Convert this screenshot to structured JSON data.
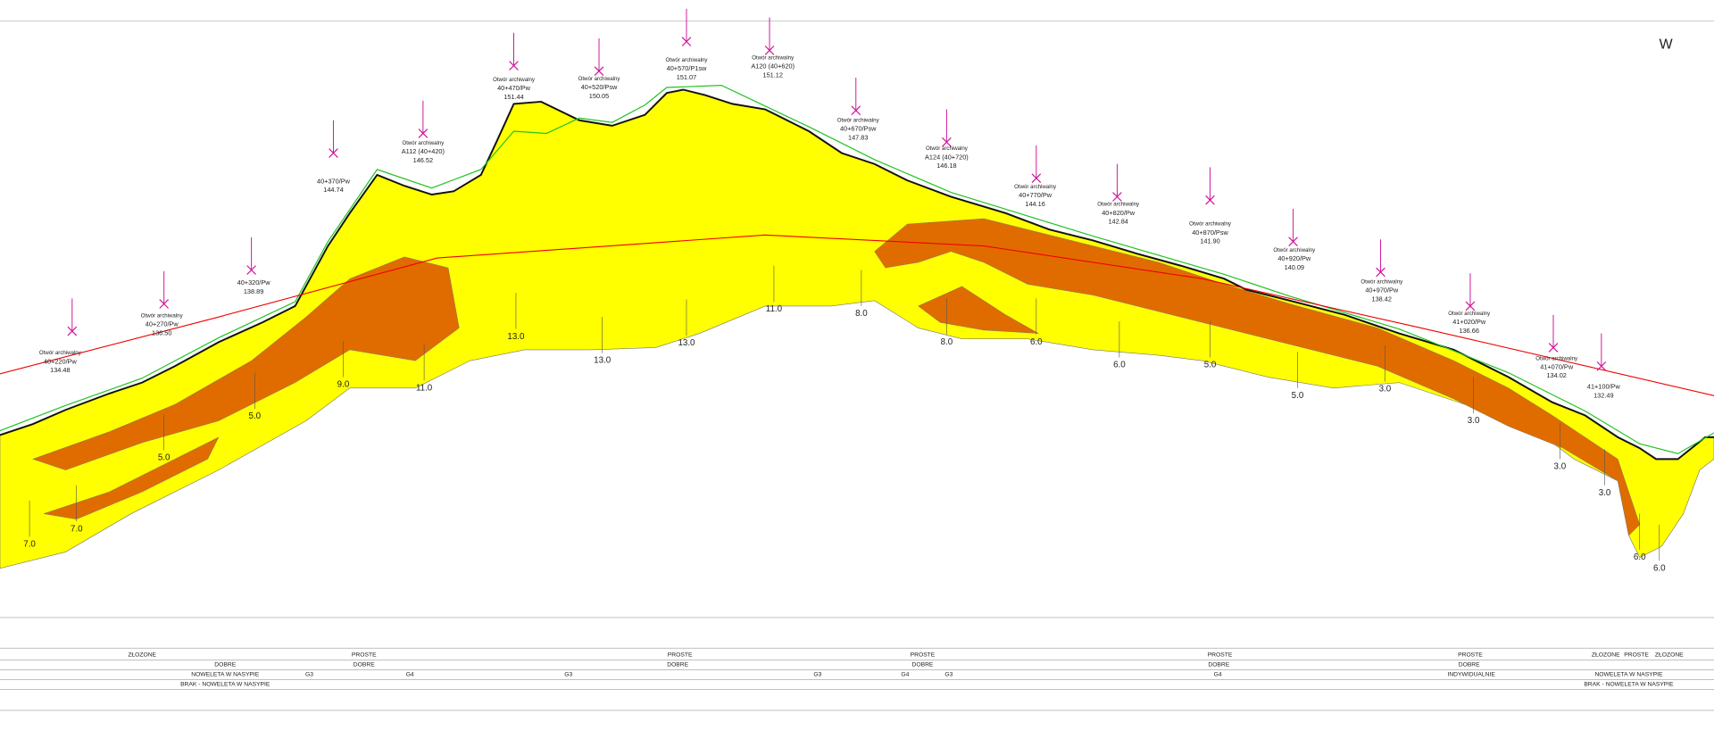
{
  "header": {
    "direction": "W"
  },
  "boreholes": [
    {
      "type": "Otwór archiwalny",
      "chainage": "40+220/Pw",
      "elevation": "134.48"
    },
    {
      "type": "Otwór archiwalny",
      "chainage": "40+270/Pw",
      "elevation": "136.50"
    },
    {
      "chainage": "40+320/Pw",
      "elevation": "138.89"
    },
    {
      "chainage": "40+370/Pw",
      "elevation": "144.74"
    },
    {
      "type": "Otwór archiwalny",
      "chainage": "A112 (40+420)",
      "elevation": "146.52"
    },
    {
      "type": "Otwór archiwalny",
      "chainage": "40+470/Pw",
      "elevation": "151.44"
    },
    {
      "type": "Otwór archiwalny",
      "chainage": "40+520/Psw",
      "elevation": "150.05"
    },
    {
      "type": "Otwór archiwalny",
      "chainage": "40+570/P1sw",
      "elevation": "151.07"
    },
    {
      "type": "Otwór archiwalny",
      "chainage": "A120 (40+620)",
      "elevation": "151.12"
    },
    {
      "type": "Otwór archiwalny",
      "chainage": "40+670/Psw",
      "elevation": "147.83"
    },
    {
      "type": "Otwór archiwalny",
      "chainage": "A124 (40+720)",
      "elevation": "146.18"
    },
    {
      "type": "Otwór archiwalny",
      "chainage": "40+770/Pw",
      "elevation": "144.16"
    },
    {
      "type": "Otwór archiwalny",
      "chainage": "40+820/Pw",
      "elevation": "142.84"
    },
    {
      "type": "Otwór archiwalny",
      "chainage": "40+870/Psw",
      "elevation": "141.90"
    },
    {
      "type": "Otwór archiwalny",
      "chainage": "40+920/Pw",
      "elevation": "140.09"
    },
    {
      "type": "Otwór archiwalny",
      "chainage": "40+970/Pw",
      "elevation": "138.42"
    },
    {
      "type": "Otwór archiwalny",
      "chainage": "41+020/Pw",
      "elevation": "136.66"
    },
    {
      "type": "Otwór archiwalny",
      "chainage": "41+070/Pw",
      "elevation": "134.02"
    },
    {
      "chainage": "41+100/Pw",
      "elevation": "132.49"
    }
  ],
  "depths": [
    "7.0",
    "7.0",
    "5.0",
    "5.0",
    "9.0",
    "11.0",
    "13.0",
    "13.0",
    "13.0",
    "11.0",
    "8.0",
    "8.0",
    "6.0",
    "6.0",
    "5.0",
    "5.0",
    "3.0",
    "3.0",
    "3.0",
    "3.0",
    "6.0",
    "6.0"
  ],
  "table": {
    "rows": [
      [
        "ZŁOZONE",
        "PROSTE",
        "PROSTE",
        "PROSTE",
        "PROSTE",
        "PROSTE",
        "ZŁOZONE",
        "PROSTE",
        "ZŁOZONE"
      ],
      [
        "DOBRE",
        "DOBRE",
        "DOBRE",
        "DOBRE",
        "DOBRE",
        "DOBRE"
      ],
      [
        "NOWELETA W NASYPIE",
        "G3",
        "G4",
        "G3",
        "G3",
        "G4",
        "G3",
        "G4",
        "INDYWIDUALNIE",
        "NOWELETA W NASYPIE"
      ],
      [
        "BRAK - NOWELETA W NASYPIE",
        "BRAK - NOWELETA W NASYPIE"
      ]
    ]
  }
}
